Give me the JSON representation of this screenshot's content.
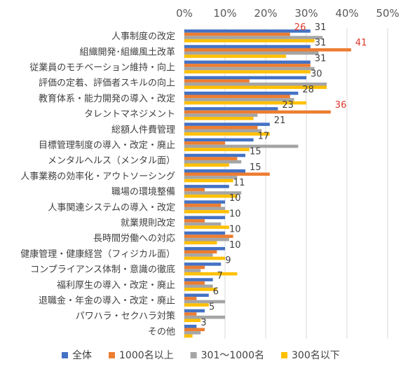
{
  "chart_data": {
    "type": "bar",
    "orientation": "horizontal",
    "xlim": [
      0,
      50
    ],
    "x_ticks": [
      "0%",
      "10%",
      "20%",
      "30%",
      "40%",
      "50%"
    ],
    "categories": [
      "人事制度の改定",
      "組織開発･組織風土改革",
      "従業員のモチベーション維持・向上",
      "評価の定着、評価者スキルの向上",
      "教育体系・能力開発の導入・改定",
      "タレントマネジメント",
      "総額人件費管理",
      "目標管理制度の導入・改定・廃止",
      "メンタルヘルス（メンタル面）",
      "人事業務の効率化・アウトソーシング",
      "職場の環境整備",
      "人事関連システムの導入・改定",
      "就業規則改定",
      "長時間労働への対応",
      "健康管理・健康経営（フィジカル面）",
      "コンプライアンス体制・意識の徹底",
      "福利厚生の導入・改定・廃止",
      "退職金・年金の導入・改定・廃止",
      "パワハラ・セクハラ対策",
      "その他"
    ],
    "series": [
      {
        "name": "全体",
        "color": "#4472C4",
        "values": [
          31,
          31,
          31,
          30,
          28,
          23,
          21,
          17,
          15,
          15,
          11,
          10,
          10,
          10,
          10,
          9,
          7,
          6,
          5,
          3
        ]
      },
      {
        "name": "1000名以上",
        "color": "#ED7D31",
        "values": [
          26,
          41,
          31,
          16,
          26,
          36,
          18,
          10,
          13,
          21,
          5,
          9,
          5,
          12,
          8,
          5,
          5,
          3,
          3,
          5
        ]
      },
      {
        "name": "301～1000名",
        "color": "#A5A5A5",
        "values": [
          34,
          33,
          32,
          35,
          27,
          18,
          19,
          28,
          14,
          13,
          14,
          10,
          9,
          11,
          7,
          4,
          7,
          10,
          10,
          4
        ]
      },
      {
        "name": "300名以下",
        "color": "#FFC000",
        "values": [
          32,
          25,
          31,
          35,
          30,
          17,
          21,
          16,
          11,
          12,
          13,
          11,
          11,
          8,
          10,
          13,
          8,
          6,
          4,
          2
        ]
      }
    ],
    "data_labels": [
      {
        "category_index": 0,
        "text": "26",
        "color": "#E0352B",
        "label_value": 26
      },
      {
        "category_index": 0,
        "text": "31",
        "color": "#404040",
        "label_value": 31
      },
      {
        "category_index": 1,
        "text": "31",
        "color": "#404040",
        "label_value": 31
      },
      {
        "category_index": 1,
        "text": "41",
        "color": "#E0352B",
        "label_value": 41
      },
      {
        "category_index": 2,
        "text": "31",
        "color": "#404040",
        "label_value": 31
      },
      {
        "category_index": 3,
        "text": "30",
        "color": "#404040",
        "label_value": 30
      },
      {
        "category_index": 4,
        "text": "28",
        "color": "#404040",
        "label_value": 28
      },
      {
        "category_index": 5,
        "text": "23",
        "color": "#404040",
        "label_value": 23
      },
      {
        "category_index": 5,
        "text": "36",
        "color": "#E0352B",
        "label_value": 36
      },
      {
        "category_index": 6,
        "text": "21",
        "color": "#404040",
        "label_value": 21
      },
      {
        "category_index": 7,
        "text": "17",
        "color": "#404040",
        "label_value": 17
      },
      {
        "category_index": 8,
        "text": "15",
        "color": "#404040",
        "label_value": 15
      },
      {
        "category_index": 9,
        "text": "15",
        "color": "#404040",
        "label_value": 15
      },
      {
        "category_index": 10,
        "text": "11",
        "color": "#404040",
        "label_value": 11
      },
      {
        "category_index": 11,
        "text": "10",
        "color": "#404040",
        "label_value": 10
      },
      {
        "category_index": 12,
        "text": "10",
        "color": "#404040",
        "label_value": 10
      },
      {
        "category_index": 13,
        "text": "10",
        "color": "#404040",
        "label_value": 10
      },
      {
        "category_index": 14,
        "text": "10",
        "color": "#404040",
        "label_value": 10
      },
      {
        "category_index": 15,
        "text": "9",
        "color": "#404040",
        "label_value": 9
      },
      {
        "category_index": 16,
        "text": "7",
        "color": "#404040",
        "label_value": 7
      },
      {
        "category_index": 17,
        "text": "6",
        "color": "#404040",
        "label_value": 6
      },
      {
        "category_index": 18,
        "text": "5",
        "color": "#404040",
        "label_value": 5
      },
      {
        "category_index": 19,
        "text": "3",
        "color": "#404040",
        "label_value": 3
      }
    ],
    "legend_position": "bottom",
    "gridlines": true
  }
}
